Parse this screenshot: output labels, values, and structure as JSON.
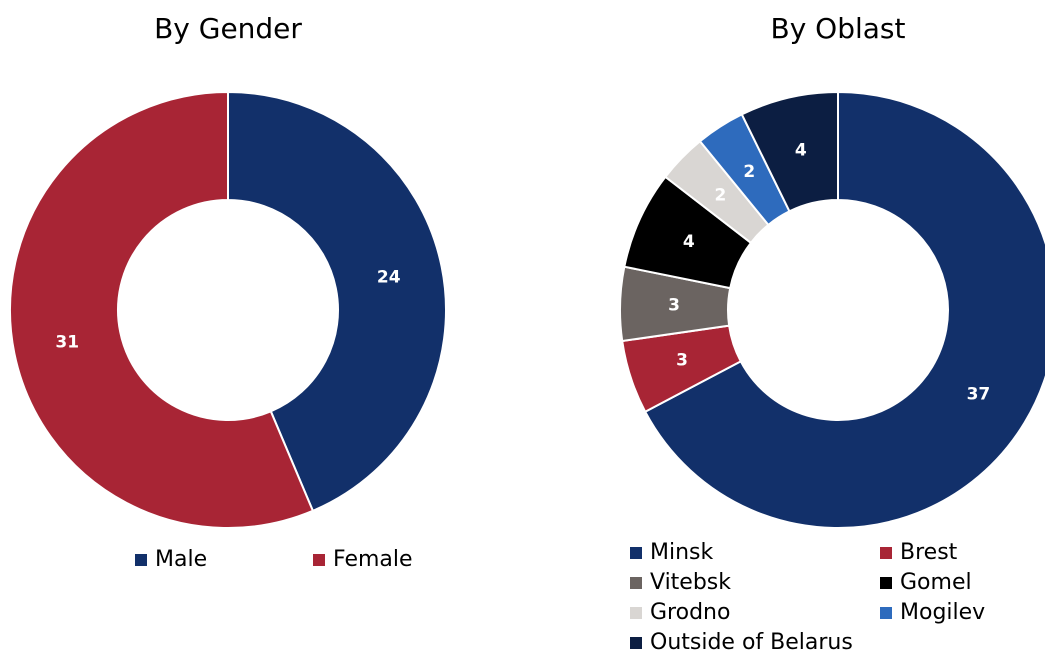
{
  "chart_data": [
    {
      "type": "donut",
      "title": "By Gender",
      "categories": [
        "Male",
        "Female"
      ],
      "values": [
        24,
        31
      ],
      "colors": [
        "#12306a",
        "#a82535"
      ]
    },
    {
      "type": "donut",
      "title": "By Oblast",
      "categories": [
        "Minsk",
        "Brest",
        "Vitebsk",
        "Gomel",
        "Grodno",
        "Mogilev",
        "Outside of Belarus"
      ],
      "values": [
        37,
        3,
        3,
        4,
        2,
        2,
        4
      ],
      "colors": [
        "#12306a",
        "#a82535",
        "#6b6461",
        "#000000",
        "#d9d6d3",
        "#2e6bbd",
        "#0c1e42"
      ]
    }
  ]
}
